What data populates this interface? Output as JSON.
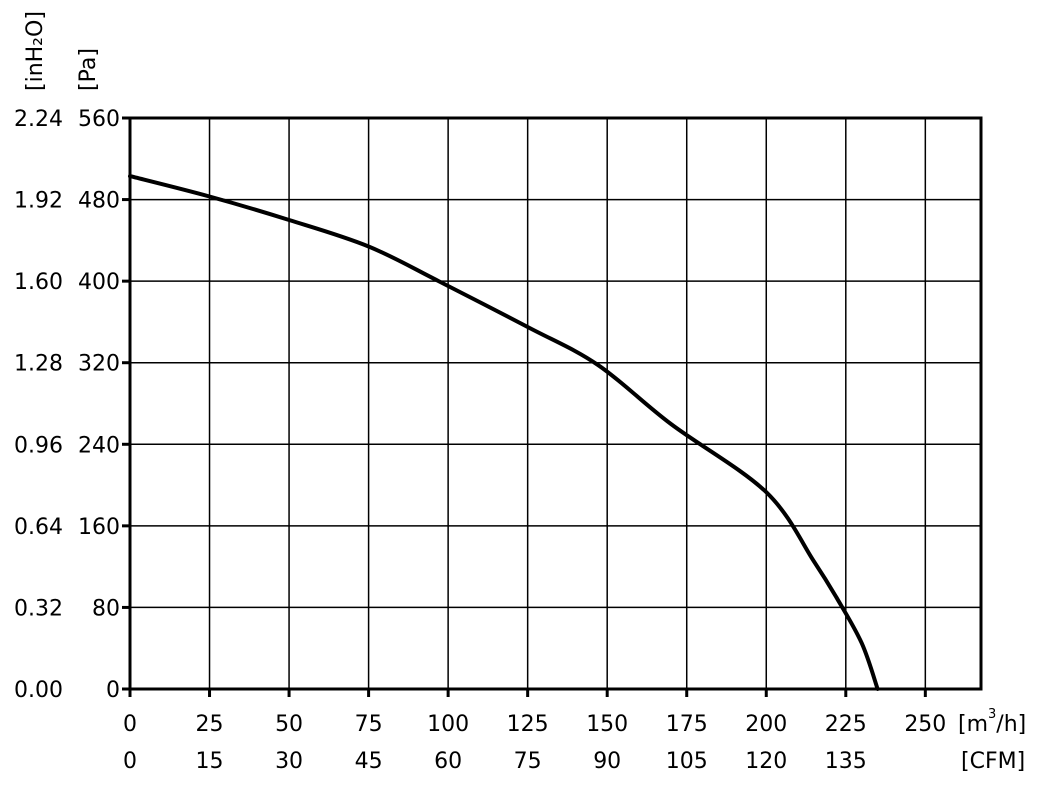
{
  "chart_data": {
    "type": "line",
    "title": "",
    "x_axis_primary": {
      "unit_label_open": "[m",
      "unit_label_sup": "3",
      "unit_label_close": "/h]",
      "ticks": [
        "0",
        "25",
        "50",
        "75",
        "100",
        "125",
        "150",
        "175",
        "200",
        "225",
        "250"
      ],
      "range": [
        0,
        267.5
      ]
    },
    "x_axis_secondary": {
      "unit_label": "[CFM]",
      "ticks": [
        "0",
        "15",
        "30",
        "45",
        "60",
        "75",
        "90",
        "105",
        "120",
        "135"
      ]
    },
    "y_axis_primary": {
      "unit_label": "[Pa]",
      "ticks": [
        "0",
        "80",
        "160",
        "240",
        "320",
        "400",
        "480",
        "560"
      ],
      "range": [
        0,
        560
      ]
    },
    "y_axis_secondary": {
      "unit_label": "[inH₂O]",
      "ticks": [
        "0.00",
        "0.32",
        "0.64",
        "0.96",
        "1.28",
        "1.60",
        "1.92",
        "2.24"
      ]
    },
    "grid": true,
    "series": [
      {
        "x": [
          0,
          25,
          50,
          75,
          97,
          125,
          147,
          170,
          200,
          215,
          222,
          230,
          235
        ],
        "y": [
          503,
          483,
          460,
          434,
          400,
          355,
          318,
          260,
          193,
          125,
          90,
          45,
          0
        ]
      }
    ]
  }
}
